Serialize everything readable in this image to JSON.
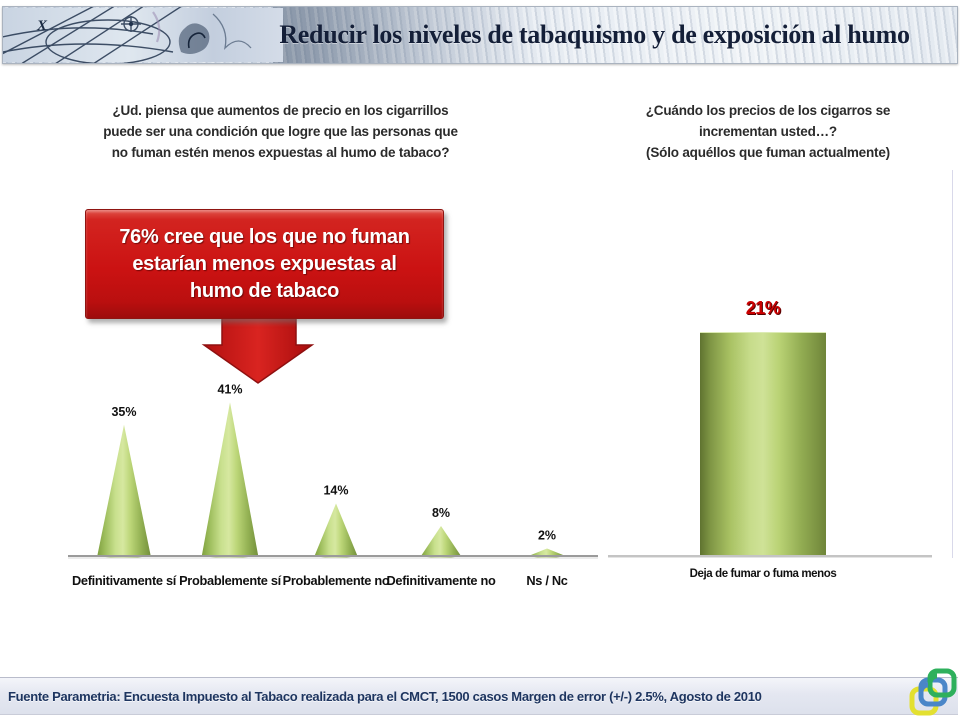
{
  "header": {
    "title": "Reducir los niveles de tabaquismo y de exposición al humo"
  },
  "left_section": {
    "question_lines": [
      "¿Ud. piensa que aumentos de precio en los cigarrillos",
      "puede ser una condición que logre que las personas que",
      "no fuman estén menos expuestas  al humo de tabaco?"
    ],
    "callout_lines": [
      "76%  cree que los que no fuman",
      "estarían menos expuestas  al",
      "humo de tabaco"
    ]
  },
  "right_section": {
    "question_lines": [
      "¿Cuándo los precios de los cigarros se",
      "incrementan usted…?",
      "(Sólo aquéllos que fuman actualmente)"
    ]
  },
  "chart_data": [
    {
      "type": "bar",
      "shape": "cone",
      "title": "¿Ud. piensa que aumentos de precio en los cigarrillos puede ser una condición que logre que las personas que no fuman estén menos expuestas al humo de tabaco?",
      "categories": [
        "Definitivamente sí",
        "Probablemente sí",
        "Probablemente no",
        "Definitivamente no",
        "Ns / Nc"
      ],
      "values": [
        35,
        41,
        14,
        8,
        2
      ],
      "value_labels": [
        "35%",
        "41%",
        "14%",
        "8%",
        "2%"
      ],
      "ylim": [
        0,
        45
      ],
      "grid": false,
      "legend": false,
      "bar_color": "#9ebf56",
      "label_color": "#111111"
    },
    {
      "type": "bar",
      "title": "¿Cuándo los precios de los cigarros se incrementan usted…? (Sólo aquéllos que fuman actualmente)",
      "categories": [
        "Deja de fumar o fuma menos"
      ],
      "values": [
        21
      ],
      "value_labels": [
        "21%"
      ],
      "ylim": [
        0,
        25
      ],
      "grid": false,
      "legend": false,
      "bar_color": "#9ebf56",
      "value_label_color": "#cc0000"
    }
  ],
  "footer": {
    "source": "Fuente Parametria: Encuesta Impuesto al Tabaco realizada para el CMCT,  1500 casos Margen de error (+/-) 2.5%, Agosto de 2010"
  },
  "colors": {
    "accent_red": "#c91414",
    "cone_green": "#9ebf56",
    "title_navy": "#141f38",
    "footer_text": "#1e3560",
    "value_red": "#cc0000"
  }
}
